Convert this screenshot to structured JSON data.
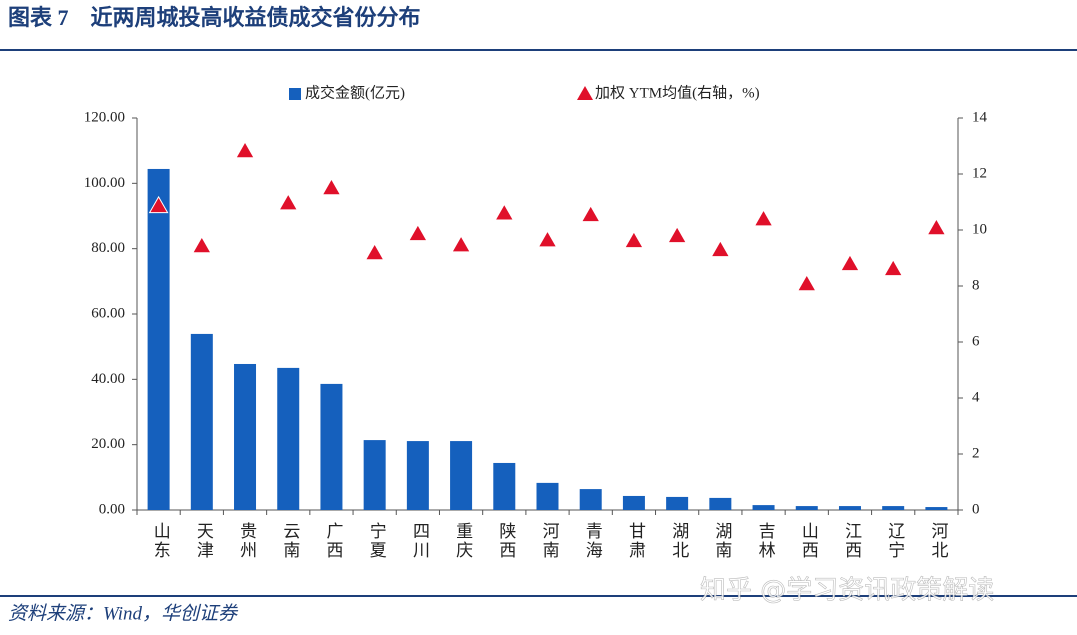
{
  "chart_data": {
    "type": "bar",
    "title": "图表 7　近两周城投高收益债成交省份分布",
    "categories": [
      "山东",
      "天津",
      "贵州",
      "云南",
      "广西",
      "宁夏",
      "四川",
      "重庆",
      "陕西",
      "河南",
      "青海",
      "甘肃",
      "湖北",
      "湖南",
      "吉林",
      "山西",
      "江西",
      "辽宁",
      "河北"
    ],
    "series": [
      {
        "name": "成交金额(亿元)",
        "color": "#1560bd",
        "values": [
          104.4,
          53.9,
          44.7,
          43.5,
          38.6,
          21.4,
          21.1,
          21.1,
          14.4,
          8.3,
          6.4,
          4.3,
          4.0,
          3.7,
          1.5,
          1.2,
          1.2,
          1.2,
          0.9
        ]
      },
      {
        "name": "加权 YTM均值(右轴，%)",
        "color": "#e0102a",
        "axis": "y2",
        "type": "scatter",
        "marker": "triangle",
        "values": [
          10.86,
          9.43,
          12.82,
          10.96,
          11.5,
          9.18,
          9.86,
          9.46,
          10.6,
          9.64,
          10.54,
          9.61,
          9.79,
          9.29,
          10.39,
          8.07,
          8.79,
          8.61,
          10.07
        ]
      }
    ],
    "ylim": [
      0,
      120
    ],
    "yticks": [
      {
        "value": 0,
        "label": "0.00"
      },
      {
        "value": 20,
        "label": "20.00"
      },
      {
        "value": 40,
        "label": "40.00"
      },
      {
        "value": 60,
        "label": "60.00"
      },
      {
        "value": 80,
        "label": "80.00"
      },
      {
        "value": 100,
        "label": "100.00"
      },
      {
        "value": 120,
        "label": "120.00"
      }
    ],
    "y2lim": [
      0,
      14
    ],
    "y2ticks": [
      0,
      2,
      4,
      6,
      8,
      10,
      12,
      14
    ],
    "grid": false,
    "legend": "top",
    "source": "资料来源：Wind，华创证券",
    "watermark": "知乎 @学习资讯政策解读"
  }
}
